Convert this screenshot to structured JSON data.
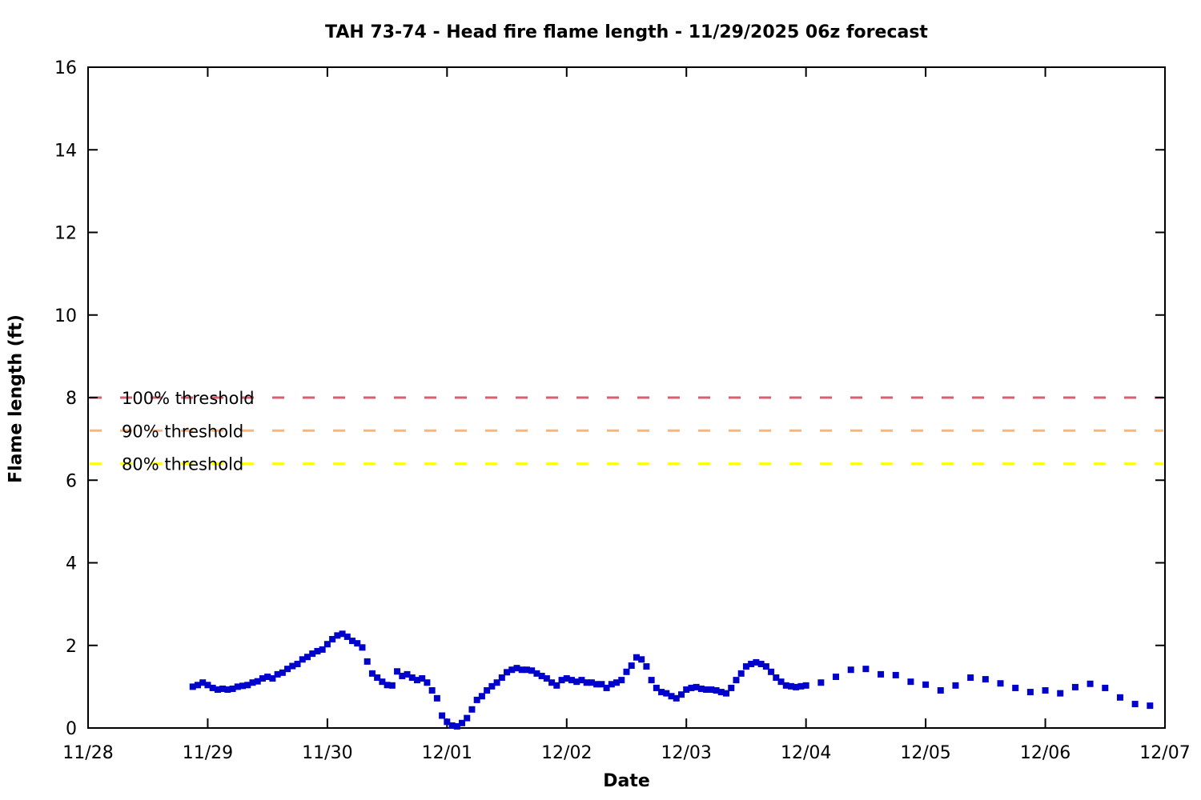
{
  "title": "TAH 73-74 - Head fire flame length - 11/29/2025 06z forecast",
  "chart_data": {
    "type": "scatter",
    "title": "TAH 73-74 - Head fire flame length - 11/29/2025 06z forecast",
    "xlabel": "Date",
    "ylabel": "Flame length (ft)",
    "x_tick_labels": [
      "11/28",
      "11/29",
      "11/30",
      "12/01",
      "12/02",
      "12/03",
      "12/04",
      "12/05",
      "12/06",
      "12/07"
    ],
    "x_range_days": [
      0,
      9
    ],
    "ylim": [
      0,
      16
    ],
    "y_ticks": [
      0,
      2,
      4,
      6,
      8,
      10,
      12,
      14,
      16
    ],
    "grid": false,
    "legend_position": "none",
    "marker": {
      "shape": "square",
      "size": 8,
      "color": "#0000cd"
    },
    "axis_color": "#000000",
    "thresholds": [
      {
        "label": "100% threshold",
        "value": 8.0,
        "color": "#d65f72"
      },
      {
        "label": "90% threshold",
        "value": 7.2,
        "color": "#fab577"
      },
      {
        "label": "80% threshold",
        "value": 6.4,
        "color": "#ffff00"
      }
    ],
    "series": [
      {
        "name": "Head fire flame length (ft)",
        "x_unit": "hours since 11/28 00z",
        "points": [
          [
            21,
            1.0
          ],
          [
            22,
            1.04
          ],
          [
            23,
            1.1
          ],
          [
            24,
            1.04
          ],
          [
            25,
            0.97
          ],
          [
            26,
            0.93
          ],
          [
            27,
            0.95
          ],
          [
            28,
            0.93
          ],
          [
            29,
            0.95
          ],
          [
            30,
            1.0
          ],
          [
            31,
            1.02
          ],
          [
            32,
            1.04
          ],
          [
            33,
            1.1
          ],
          [
            34,
            1.13
          ],
          [
            35,
            1.2
          ],
          [
            36,
            1.24
          ],
          [
            37,
            1.2
          ],
          [
            38,
            1.3
          ],
          [
            39,
            1.34
          ],
          [
            40,
            1.43
          ],
          [
            41,
            1.5
          ],
          [
            42,
            1.55
          ],
          [
            43,
            1.66
          ],
          [
            44,
            1.72
          ],
          [
            45,
            1.8
          ],
          [
            46,
            1.86
          ],
          [
            47,
            1.9
          ],
          [
            48,
            2.03
          ],
          [
            49,
            2.15
          ],
          [
            50,
            2.24
          ],
          [
            51,
            2.28
          ],
          [
            52,
            2.21
          ],
          [
            53,
            2.11
          ],
          [
            54,
            2.05
          ],
          [
            55,
            1.95
          ],
          [
            56,
            1.61
          ],
          [
            57,
            1.32
          ],
          [
            58,
            1.22
          ],
          [
            59,
            1.12
          ],
          [
            60,
            1.04
          ],
          [
            61,
            1.03
          ],
          [
            62,
            1.37
          ],
          [
            63,
            1.26
          ],
          [
            64,
            1.3
          ],
          [
            65,
            1.22
          ],
          [
            66,
            1.16
          ],
          [
            67,
            1.2
          ],
          [
            68,
            1.1
          ],
          [
            69,
            0.91
          ],
          [
            70,
            0.72
          ],
          [
            71,
            0.3
          ],
          [
            72,
            0.15
          ],
          [
            73,
            0.06
          ],
          [
            74,
            0.04
          ],
          [
            75,
            0.12
          ],
          [
            76,
            0.24
          ],
          [
            77,
            0.45
          ],
          [
            78,
            0.68
          ],
          [
            79,
            0.77
          ],
          [
            80,
            0.91
          ],
          [
            81,
            1.01
          ],
          [
            82,
            1.1
          ],
          [
            83,
            1.22
          ],
          [
            84,
            1.35
          ],
          [
            85,
            1.41
          ],
          [
            86,
            1.45
          ],
          [
            87,
            1.41
          ],
          [
            88,
            1.41
          ],
          [
            89,
            1.39
          ],
          [
            90,
            1.32
          ],
          [
            91,
            1.26
          ],
          [
            92,
            1.2
          ],
          [
            93,
            1.1
          ],
          [
            94,
            1.03
          ],
          [
            95,
            1.16
          ],
          [
            96,
            1.2
          ],
          [
            97,
            1.16
          ],
          [
            98,
            1.12
          ],
          [
            99,
            1.16
          ],
          [
            100,
            1.1
          ],
          [
            101,
            1.1
          ],
          [
            102,
            1.06
          ],
          [
            103,
            1.06
          ],
          [
            104,
            0.97
          ],
          [
            105,
            1.06
          ],
          [
            106,
            1.1
          ],
          [
            107,
            1.16
          ],
          [
            108,
            1.36
          ],
          [
            109,
            1.51
          ],
          [
            110,
            1.71
          ],
          [
            111,
            1.66
          ],
          [
            112,
            1.49
          ],
          [
            113,
            1.16
          ],
          [
            114,
            0.97
          ],
          [
            115,
            0.87
          ],
          [
            116,
            0.84
          ],
          [
            117,
            0.77
          ],
          [
            118,
            0.72
          ],
          [
            119,
            0.81
          ],
          [
            120,
            0.93
          ],
          [
            121,
            0.97
          ],
          [
            122,
            0.99
          ],
          [
            123,
            0.95
          ],
          [
            124,
            0.93
          ],
          [
            125,
            0.93
          ],
          [
            126,
            0.91
          ],
          [
            127,
            0.87
          ],
          [
            128,
            0.84
          ],
          [
            129,
            0.97
          ],
          [
            130,
            1.16
          ],
          [
            131,
            1.32
          ],
          [
            132,
            1.49
          ],
          [
            133,
            1.55
          ],
          [
            134,
            1.59
          ],
          [
            135,
            1.55
          ],
          [
            136,
            1.49
          ],
          [
            137,
            1.36
          ],
          [
            138,
            1.22
          ],
          [
            139,
            1.12
          ],
          [
            140,
            1.03
          ],
          [
            141,
            1.01
          ],
          [
            142,
            0.99
          ],
          [
            143,
            1.01
          ],
          [
            144,
            1.03
          ],
          [
            147,
            1.1
          ],
          [
            150,
            1.24
          ],
          [
            153,
            1.41
          ],
          [
            156,
            1.43
          ],
          [
            159,
            1.3
          ],
          [
            162,
            1.28
          ],
          [
            165,
            1.12
          ],
          [
            168,
            1.05
          ],
          [
            171,
            0.91
          ],
          [
            174,
            1.03
          ],
          [
            177,
            1.22
          ],
          [
            180,
            1.18
          ],
          [
            183,
            1.08
          ],
          [
            186,
            0.97
          ],
          [
            189,
            0.87
          ],
          [
            192,
            0.91
          ],
          [
            195,
            0.84
          ],
          [
            198,
            0.99
          ],
          [
            201,
            1.07
          ],
          [
            204,
            0.97
          ],
          [
            207,
            0.74
          ],
          [
            210,
            0.58
          ],
          [
            213,
            0.54
          ]
        ]
      }
    ]
  }
}
